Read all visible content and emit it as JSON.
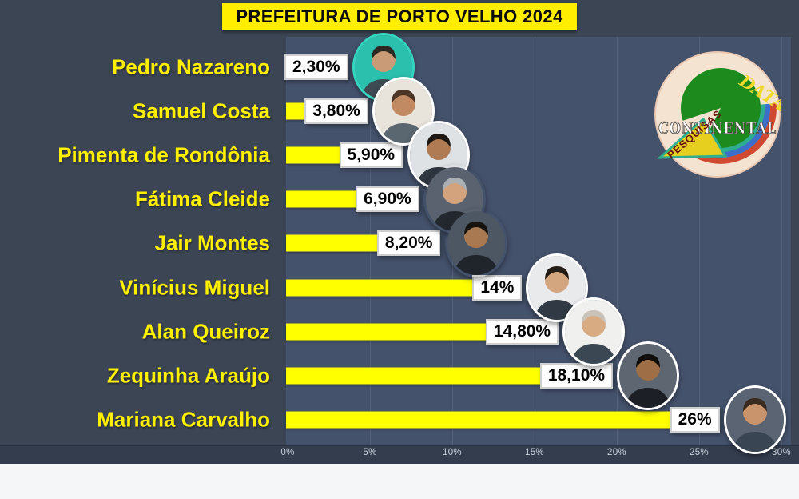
{
  "title": "PREFEITURA DE PORTO VELHO 2024",
  "logo": {
    "word_top": "DATA",
    "word_main": "CONTINENTAL",
    "word_band": "PESQUISAS"
  },
  "colors": {
    "background": "#3b4554",
    "plot_background": "#45526c",
    "axis_strip": "#343d4e",
    "bottom_strip": "#f5f6f8",
    "title_bg": "#ffee00",
    "candidate_name_color": "#ffef00",
    "bar_color": "#ffff00",
    "value_box_bg": "#ffffff",
    "value_text_color": "#000000",
    "pedro_photo_ring": "#35d6c0"
  },
  "chart_data": {
    "type": "bar",
    "orientation": "horizontal",
    "title": "PREFEITURA DE PORTO VELHO 2024",
    "categories": [
      "Pedro Nazareno",
      "Samuel Costa",
      "Pimenta de Rondônia",
      "Fátima Cleide",
      "Jair  Montes",
      "Vinícius Miguel",
      "Alan Queiroz",
      "Zequinha Araújo",
      "Mariana Carvalho"
    ],
    "values": [
      2.3,
      3.8,
      5.9,
      6.9,
      8.2,
      14,
      14.8,
      18.1,
      26
    ],
    "value_labels": [
      "2,30%",
      "3,80%",
      "5,90%",
      "6,90%",
      "8,20%",
      "14%",
      "14,80%",
      "18,10%",
      "26%"
    ],
    "xlim": [
      0,
      30
    ],
    "x_ticks": [
      0,
      5,
      10,
      15,
      20,
      25,
      30
    ],
    "x_tick_labels": [
      "0%",
      "5%",
      "10%",
      "15%",
      "20%",
      "25%",
      "30%"
    ],
    "grid": true,
    "legend": "none",
    "bar_color": "#FFFF00",
    "photo_rings": [
      "#35d6c0",
      "#ffffff",
      "#ffffff",
      null,
      null,
      "#ffffff",
      "#ffffff",
      "#ffffff",
      "#ffffff"
    ]
  }
}
